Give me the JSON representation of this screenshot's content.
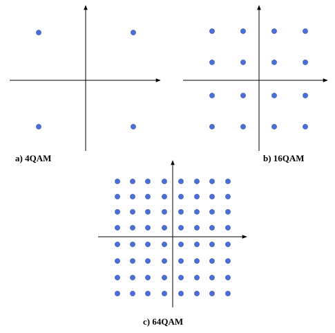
{
  "captions": {
    "a": "a)  4QAM",
    "b": "b)  16QAM",
    "c": "c)  64QAM"
  },
  "colors": {
    "dot": "#4a6fd8",
    "axis": "#000000"
  },
  "constellations": [
    {
      "id": "4qam",
      "grid": 2
    },
    {
      "id": "16qam",
      "grid": 4
    },
    {
      "id": "64qam",
      "grid": 8
    }
  ]
}
